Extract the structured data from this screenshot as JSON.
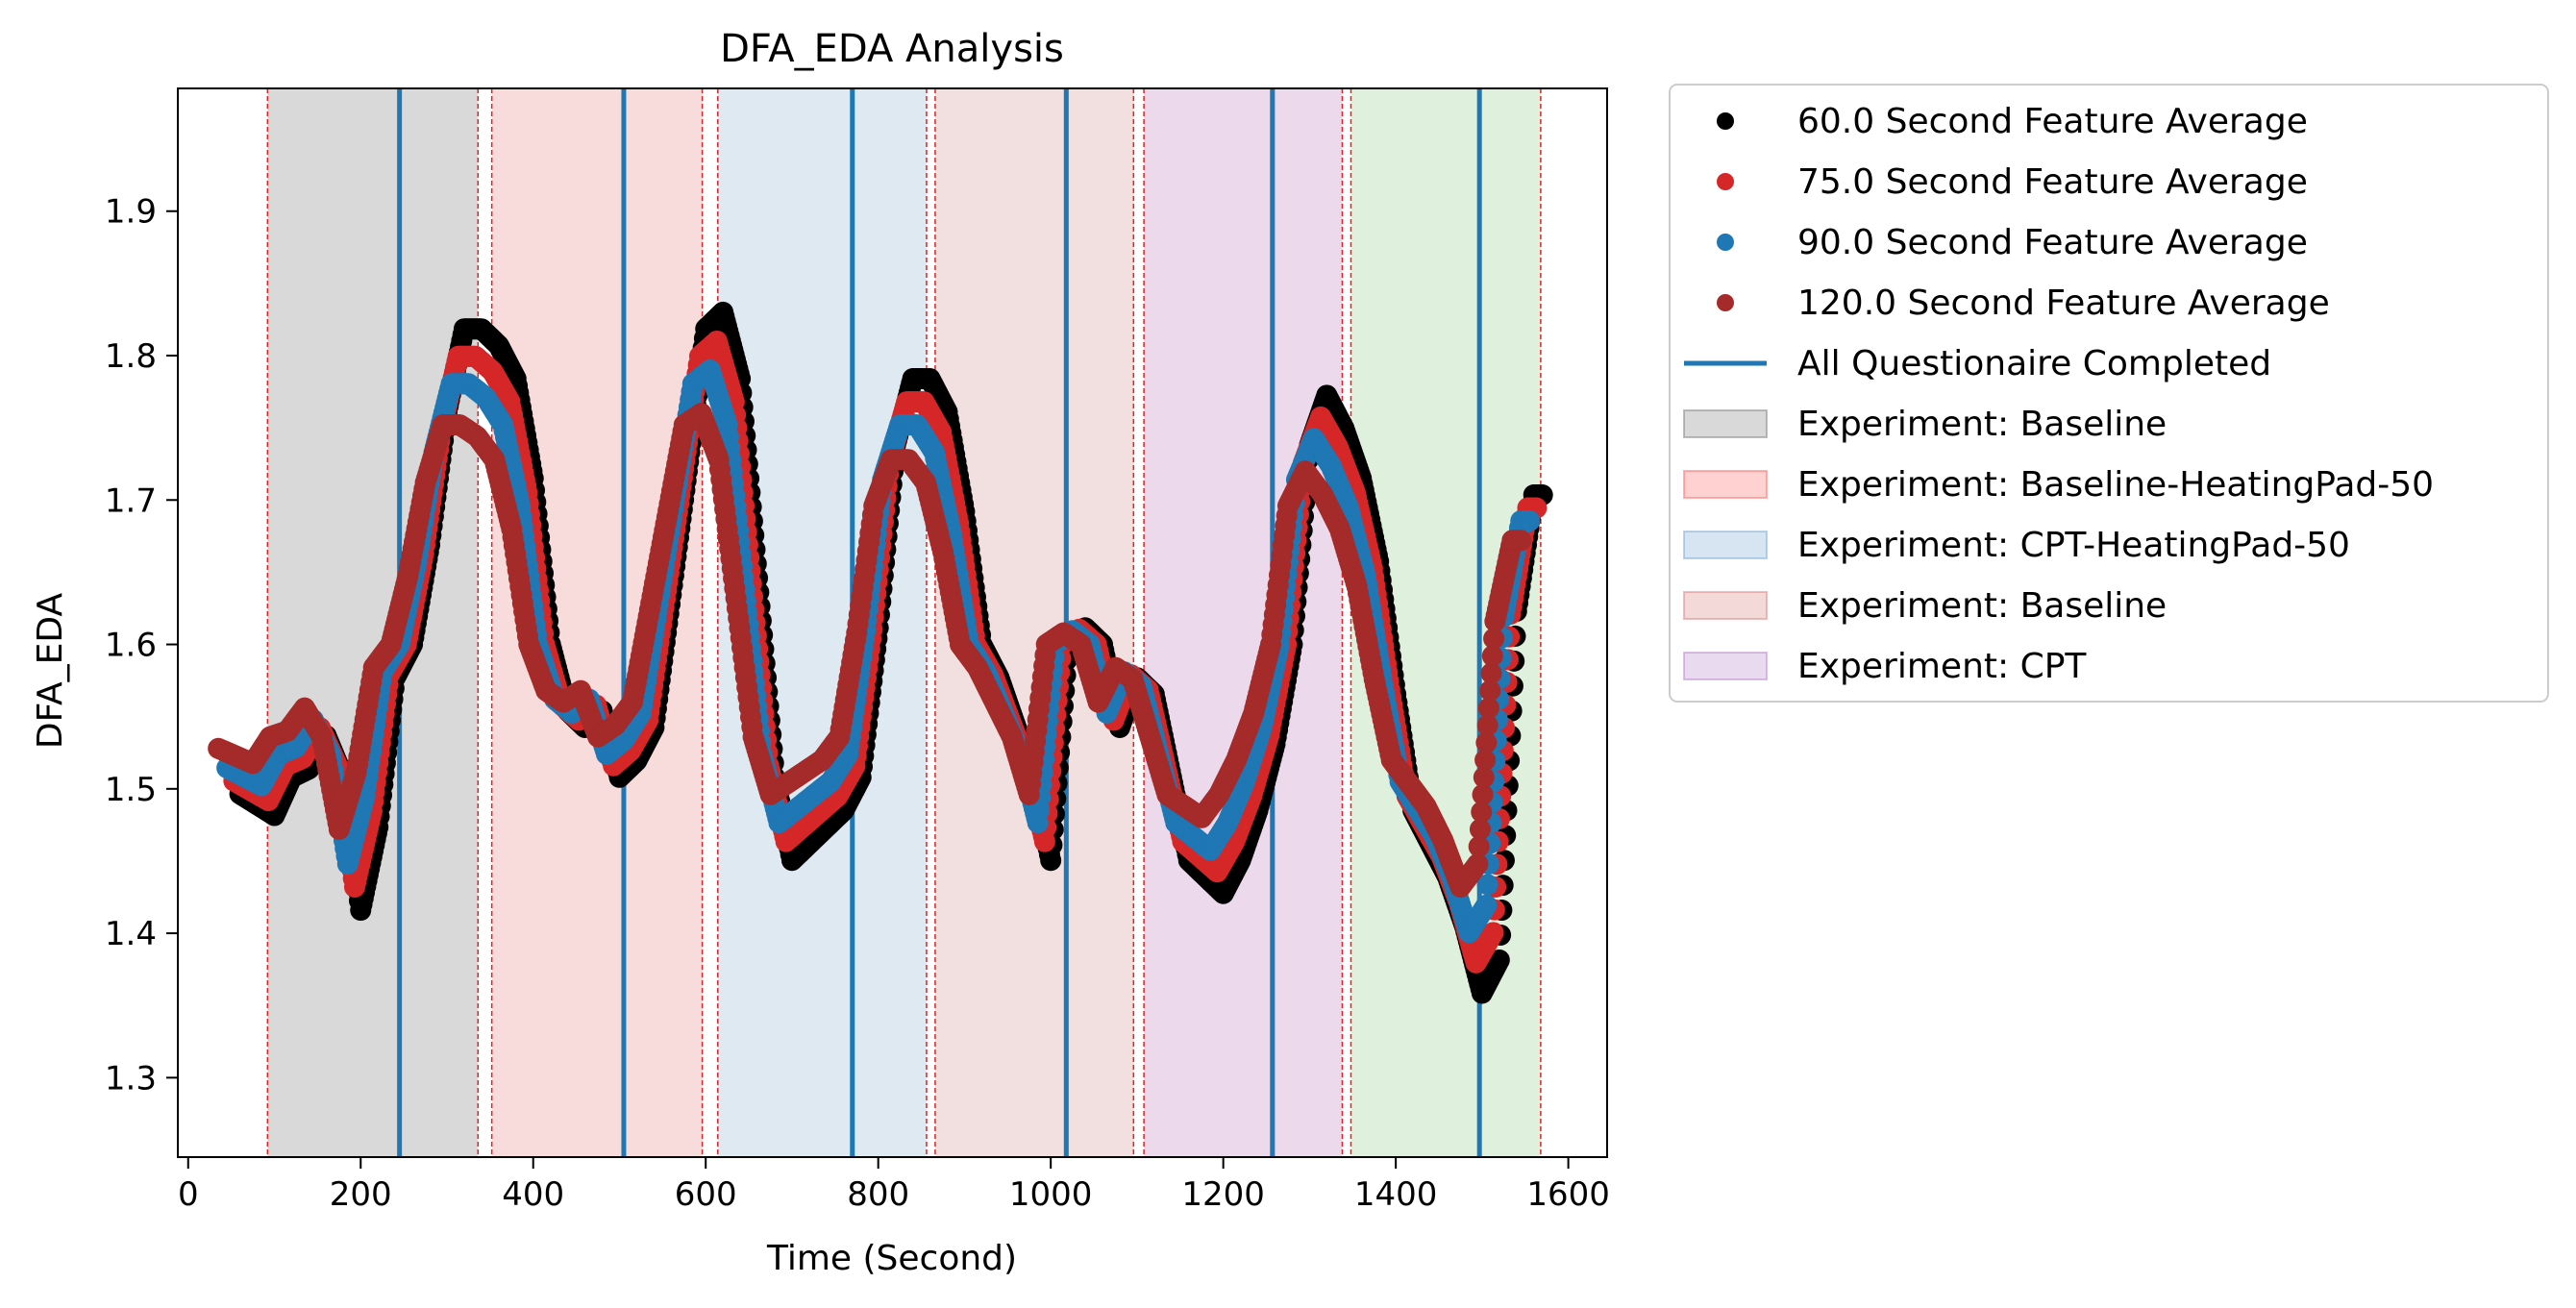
{
  "chart_data": {
    "type": "scatter",
    "title": "DFA_EDA Analysis",
    "xlabel": "Time (Second)",
    "ylabel": "DFA_EDA",
    "xlim": [
      -12,
      1645
    ],
    "ylim": [
      1.245,
      1.985
    ],
    "xticks": [
      0,
      200,
      400,
      600,
      800,
      1000,
      1200,
      1400,
      1600
    ],
    "yticks": [
      1.3,
      1.4,
      1.5,
      1.6,
      1.7,
      1.8,
      1.9
    ],
    "grid": false,
    "legend_position": "outside-right",
    "legend": [
      {
        "label": "60.0 Second Feature Average",
        "kind": "dot",
        "color": "#000000"
      },
      {
        "label": "75.0 Second Feature Average",
        "kind": "dot",
        "color": "#d62728"
      },
      {
        "label": "90.0 Second Feature Average",
        "kind": "dot",
        "color": "#1f77b4"
      },
      {
        "label": "120.0 Second Feature Average",
        "kind": "dot",
        "color": "#a52a2a"
      },
      {
        "label": "All Questionaire Completed",
        "kind": "line",
        "color": "#1f77b4"
      },
      {
        "label": "Experiment: Baseline",
        "kind": "patch",
        "color": "#808080"
      },
      {
        "label": "Experiment: Baseline-HeatingPad-50",
        "kind": "patch",
        "color": "#ff6666"
      },
      {
        "label": "Experiment: CPT-HeatingPad-50",
        "kind": "patch",
        "color": "#7aaad6"
      },
      {
        "label": "Experiment: Baseline",
        "kind": "patch",
        "color": "#d98080"
      },
      {
        "label": "Experiment: CPT",
        "kind": "patch",
        "color": "#b884c9"
      }
    ],
    "phase_spans": [
      {
        "x": [
          92,
          336
        ],
        "color": "#d9d9d9"
      },
      {
        "x": [
          352,
          596
        ],
        "color": "#f8dcdc"
      },
      {
        "x": [
          614,
          856
        ],
        "color": "#dfe9f2"
      },
      {
        "x": [
          866,
          1096
        ],
        "color": "#f2dfdf"
      },
      {
        "x": [
          1108,
          1338
        ],
        "color": "#ecd9ec"
      },
      {
        "x": [
          1348,
          1568
        ],
        "color": "#dff0dd"
      }
    ],
    "phase_boundaries": [
      92,
      336,
      352,
      596,
      614,
      856,
      866,
      1096,
      1108,
      1338,
      1348,
      1568
    ],
    "questionnaire_completed": [
      245,
      505,
      770,
      1018,
      1257,
      1497
    ],
    "series": [
      {
        "name": "60.0 Second Feature Average",
        "color": "#000000",
        "offset": 0,
        "scale": 1.15,
        "x": [
          60,
          100,
          120,
          140,
          160,
          180,
          200,
          220,
          240,
          260,
          280,
          300,
          320,
          340,
          360,
          380,
          400,
          420,
          440,
          460,
          480,
          500,
          520,
          540,
          560,
          580,
          600,
          620,
          640,
          660,
          680,
          700,
          720,
          740,
          760,
          780,
          800,
          820,
          840,
          860,
          880,
          900,
          920,
          940,
          960,
          980,
          1000,
          1020,
          1040,
          1060,
          1080,
          1100,
          1120,
          1140,
          1160,
          1180,
          1200,
          1220,
          1240,
          1260,
          1280,
          1300,
          1320,
          1340,
          1360,
          1380,
          1400,
          1420,
          1440,
          1460,
          1480,
          1500,
          1520,
          1540,
          1560,
          1570
        ],
        "y": [
          1.51,
          1.497,
          1.52,
          1.525,
          1.545,
          1.52,
          1.44,
          1.49,
          1.58,
          1.6,
          1.66,
          1.74,
          1.79,
          1.79,
          1.78,
          1.76,
          1.7,
          1.6,
          1.56,
          1.55,
          1.56,
          1.52,
          1.53,
          1.55,
          1.63,
          1.71,
          1.79,
          1.8,
          1.76,
          1.64,
          1.52,
          1.47,
          1.48,
          1.49,
          1.5,
          1.52,
          1.61,
          1.72,
          1.76,
          1.76,
          1.74,
          1.68,
          1.6,
          1.58,
          1.55,
          1.52,
          1.47,
          1.6,
          1.61,
          1.6,
          1.55,
          1.58,
          1.57,
          1.52,
          1.47,
          1.46,
          1.45,
          1.47,
          1.5,
          1.54,
          1.6,
          1.72,
          1.75,
          1.73,
          1.7,
          1.65,
          1.57,
          1.5,
          1.48,
          1.46,
          1.43,
          1.39,
          1.41,
          1.62,
          1.69,
          1.69
        ]
      },
      {
        "name": "75.0 Second Feature Average",
        "color": "#d62728",
        "offset": -7,
        "scale": 1.05,
        "x": [
          60,
          100,
          120,
          140,
          160,
          180,
          200,
          220,
          240,
          260,
          280,
          300,
          320,
          340,
          360,
          380,
          400,
          420,
          440,
          460,
          480,
          500,
          520,
          540,
          560,
          580,
          600,
          620,
          640,
          660,
          680,
          700,
          720,
          740,
          760,
          780,
          800,
          820,
          840,
          860,
          880,
          900,
          920,
          940,
          960,
          980,
          1000,
          1020,
          1040,
          1060,
          1080,
          1100,
          1120,
          1140,
          1160,
          1180,
          1200,
          1220,
          1240,
          1260,
          1280,
          1300,
          1320,
          1340,
          1360,
          1380,
          1400,
          1420,
          1440,
          1460,
          1480,
          1500,
          1520,
          1540,
          1560,
          1570
        ],
        "y": [
          1.51,
          1.497,
          1.52,
          1.525,
          1.545,
          1.52,
          1.44,
          1.49,
          1.58,
          1.6,
          1.66,
          1.74,
          1.79,
          1.79,
          1.78,
          1.76,
          1.7,
          1.6,
          1.56,
          1.55,
          1.56,
          1.52,
          1.53,
          1.55,
          1.63,
          1.71,
          1.79,
          1.8,
          1.76,
          1.64,
          1.52,
          1.47,
          1.48,
          1.49,
          1.5,
          1.52,
          1.61,
          1.72,
          1.76,
          1.76,
          1.74,
          1.68,
          1.6,
          1.58,
          1.55,
          1.52,
          1.47,
          1.6,
          1.61,
          1.6,
          1.55,
          1.58,
          1.57,
          1.52,
          1.47,
          1.46,
          1.45,
          1.47,
          1.5,
          1.54,
          1.6,
          1.72,
          1.75,
          1.73,
          1.7,
          1.65,
          1.57,
          1.5,
          1.48,
          1.46,
          1.43,
          1.39,
          1.41,
          1.62,
          1.69,
          1.69
        ]
      },
      {
        "name": "90.0 Second Feature Average",
        "color": "#1f77b4",
        "offset": -15,
        "scale": 0.95,
        "x": [
          60,
          100,
          120,
          140,
          160,
          180,
          200,
          220,
          240,
          260,
          280,
          300,
          320,
          340,
          360,
          380,
          400,
          420,
          440,
          460,
          480,
          500,
          520,
          540,
          560,
          580,
          600,
          620,
          640,
          660,
          680,
          700,
          720,
          740,
          760,
          780,
          800,
          820,
          840,
          860,
          880,
          900,
          920,
          940,
          960,
          980,
          1000,
          1020,
          1040,
          1060,
          1080,
          1100,
          1120,
          1140,
          1160,
          1180,
          1200,
          1220,
          1240,
          1260,
          1280,
          1300,
          1320,
          1340,
          1360,
          1380,
          1400,
          1420,
          1440,
          1460,
          1480,
          1500,
          1520,
          1540,
          1560,
          1570
        ],
        "y": [
          1.51,
          1.497,
          1.52,
          1.525,
          1.545,
          1.52,
          1.44,
          1.49,
          1.58,
          1.6,
          1.66,
          1.74,
          1.79,
          1.79,
          1.78,
          1.76,
          1.7,
          1.6,
          1.56,
          1.55,
          1.56,
          1.52,
          1.53,
          1.55,
          1.63,
          1.71,
          1.79,
          1.8,
          1.76,
          1.64,
          1.52,
          1.47,
          1.48,
          1.49,
          1.5,
          1.52,
          1.61,
          1.72,
          1.76,
          1.76,
          1.74,
          1.68,
          1.6,
          1.58,
          1.55,
          1.52,
          1.47,
          1.6,
          1.61,
          1.6,
          1.55,
          1.58,
          1.57,
          1.52,
          1.47,
          1.46,
          1.45,
          1.47,
          1.5,
          1.54,
          1.6,
          1.72,
          1.75,
          1.73,
          1.7,
          1.65,
          1.57,
          1.5,
          1.48,
          1.46,
          1.43,
          1.39,
          1.41,
          1.62,
          1.69,
          1.69
        ]
      },
      {
        "name": "120.0 Second Feature Average",
        "color": "#a52a2a",
        "offset": -25,
        "scale": 0.8,
        "x": [
          60,
          100,
          120,
          140,
          160,
          180,
          200,
          220,
          240,
          260,
          280,
          300,
          320,
          340,
          360,
          380,
          400,
          420,
          440,
          460,
          480,
          500,
          520,
          540,
          560,
          580,
          600,
          620,
          640,
          660,
          680,
          700,
          720,
          740,
          760,
          780,
          800,
          820,
          840,
          860,
          880,
          900,
          920,
          940,
          960,
          980,
          1000,
          1020,
          1040,
          1060,
          1080,
          1100,
          1120,
          1140,
          1160,
          1180,
          1200,
          1220,
          1240,
          1260,
          1280,
          1300,
          1320,
          1340,
          1360,
          1380,
          1400,
          1420,
          1440,
          1460,
          1480,
          1500,
          1520,
          1540,
          1560,
          1570
        ],
        "y": [
          1.51,
          1.497,
          1.52,
          1.525,
          1.545,
          1.52,
          1.44,
          1.49,
          1.58,
          1.6,
          1.66,
          1.74,
          1.79,
          1.79,
          1.78,
          1.76,
          1.7,
          1.6,
          1.56,
          1.55,
          1.56,
          1.52,
          1.53,
          1.55,
          1.63,
          1.71,
          1.79,
          1.8,
          1.76,
          1.64,
          1.52,
          1.47,
          1.48,
          1.49,
          1.5,
          1.52,
          1.61,
          1.72,
          1.76,
          1.76,
          1.74,
          1.68,
          1.6,
          1.58,
          1.55,
          1.52,
          1.47,
          1.6,
          1.61,
          1.6,
          1.55,
          1.58,
          1.57,
          1.52,
          1.47,
          1.46,
          1.45,
          1.47,
          1.5,
          1.54,
          1.6,
          1.72,
          1.75,
          1.73,
          1.7,
          1.65,
          1.57,
          1.5,
          1.48,
          1.46,
          1.43,
          1.39,
          1.41,
          1.62,
          1.69,
          1.69
        ]
      }
    ]
  }
}
